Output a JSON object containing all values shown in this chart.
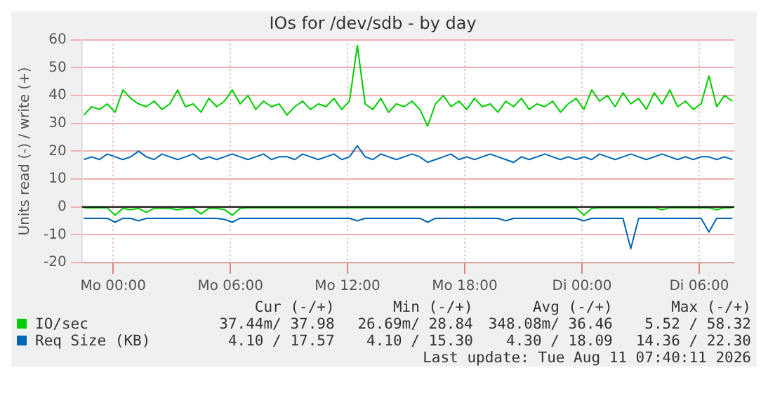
{
  "chart_data": {
    "type": "line",
    "title": "IOs for /dev/sdb - by day",
    "ylabel": "Units read (-) / write (+)",
    "x": [
      "2026-08-09T22:30",
      "2026-08-09T22:54",
      "2026-08-09T23:18",
      "2026-08-09T23:42",
      "2026-08-10T00:06",
      "2026-08-10T00:30",
      "2026-08-10T00:54",
      "2026-08-10T01:18",
      "2026-08-10T01:42",
      "2026-08-10T02:06",
      "2026-08-10T02:30",
      "2026-08-10T02:54",
      "2026-08-10T03:18",
      "2026-08-10T03:42",
      "2026-08-10T04:06",
      "2026-08-10T04:30",
      "2026-08-10T04:54",
      "2026-08-10T05:18",
      "2026-08-10T05:42",
      "2026-08-10T06:06",
      "2026-08-10T06:30",
      "2026-08-10T06:54",
      "2026-08-10T07:18",
      "2026-08-10T07:42",
      "2026-08-10T08:06",
      "2026-08-10T08:30",
      "2026-08-10T08:54",
      "2026-08-10T09:18",
      "2026-08-10T09:42",
      "2026-08-10T10:06",
      "2026-08-10T10:30",
      "2026-08-10T10:54",
      "2026-08-10T11:18",
      "2026-08-10T11:42",
      "2026-08-10T12:06",
      "2026-08-10T12:30",
      "2026-08-10T12:54",
      "2026-08-10T13:18",
      "2026-08-10T13:42",
      "2026-08-10T14:06",
      "2026-08-10T14:30",
      "2026-08-10T14:54",
      "2026-08-10T15:18",
      "2026-08-10T15:42",
      "2026-08-10T16:06",
      "2026-08-10T16:30",
      "2026-08-10T16:54",
      "2026-08-10T17:18",
      "2026-08-10T17:42",
      "2026-08-10T18:06",
      "2026-08-10T18:30",
      "2026-08-10T18:54",
      "2026-08-10T19:18",
      "2026-08-10T19:42",
      "2026-08-10T20:06",
      "2026-08-10T20:30",
      "2026-08-10T20:54",
      "2026-08-10T21:18",
      "2026-08-10T21:42",
      "2026-08-10T22:06",
      "2026-08-10T22:30",
      "2026-08-10T22:54",
      "2026-08-10T23:18",
      "2026-08-10T23:42",
      "2026-08-11T00:06",
      "2026-08-11T00:30",
      "2026-08-11T00:54",
      "2026-08-11T01:18",
      "2026-08-11T01:42",
      "2026-08-11T02:06",
      "2026-08-11T02:30",
      "2026-08-11T02:54",
      "2026-08-11T03:18",
      "2026-08-11T03:42",
      "2026-08-11T04:06",
      "2026-08-11T04:30",
      "2026-08-11T04:54",
      "2026-08-11T05:18",
      "2026-08-11T05:42",
      "2026-08-11T06:06",
      "2026-08-11T06:30",
      "2026-08-11T06:54",
      "2026-08-11T07:18",
      "2026-08-11T07:42"
    ],
    "series": [
      {
        "name": "IO/sec",
        "color": "#00cc00",
        "values": [
          33,
          36,
          35,
          37,
          34,
          42,
          39,
          37,
          36,
          38,
          35,
          37,
          42,
          36,
          37,
          34,
          39,
          36,
          38,
          42,
          37,
          40,
          35,
          38,
          36,
          37,
          33,
          36,
          38,
          35,
          37,
          36,
          39,
          35,
          38,
          58,
          37,
          35,
          39,
          34,
          37,
          36,
          38,
          35,
          29,
          37,
          40,
          36,
          38,
          35,
          39,
          36,
          37,
          34,
          38,
          36,
          39,
          35,
          37,
          36,
          38,
          34,
          37,
          39,
          35,
          42,
          38,
          40,
          36,
          41,
          37,
          39,
          35,
          41,
          37,
          42,
          36,
          38,
          35,
          37,
          47,
          36,
          40,
          38
        ]
      },
      {
        "name": "Req Size (KB)",
        "color": "#0066b3",
        "values": [
          17,
          18,
          17,
          19,
          18,
          17,
          18,
          20,
          18,
          17,
          19,
          18,
          17,
          18,
          19,
          17,
          18,
          17,
          18,
          19,
          18,
          17,
          18,
          19,
          17,
          18,
          18,
          17,
          19,
          18,
          17,
          18,
          19,
          17,
          18,
          22,
          18,
          17,
          19,
          18,
          17,
          18,
          19,
          18,
          16,
          17,
          18,
          19,
          17,
          18,
          17,
          18,
          19,
          18,
          17,
          16,
          18,
          17,
          18,
          19,
          18,
          17,
          18,
          17,
          18,
          17,
          19,
          18,
          17,
          18,
          19,
          18,
          17,
          18,
          19,
          18,
          17,
          18,
          17,
          18,
          18,
          17,
          18,
          17
        ]
      },
      {
        "color": "#00cc00",
        "values": [
          -0.3,
          -0.3,
          -0.3,
          -0.3,
          -3,
          -0.5,
          -1,
          -0.5,
          -2,
          -0.5,
          -0.5,
          -0.5,
          -1,
          -0.5,
          -0.5,
          -2.5,
          -0.5,
          -0.5,
          -1,
          -3,
          -0.5,
          -0.3,
          -0.3,
          -0.3,
          -0.3,
          -0.3,
          -0.3,
          -0.3,
          -0.3,
          -0.3,
          -0.3,
          -0.3,
          -0.3,
          -0.3,
          -0.3,
          -0.3,
          -0.3,
          -0.3,
          -0.3,
          -0.3,
          -0.3,
          -0.3,
          -0.3,
          -0.3,
          -0.3,
          -0.3,
          -0.3,
          -0.3,
          -0.3,
          -0.3,
          -0.3,
          -0.3,
          -0.3,
          -0.3,
          -0.3,
          -0.3,
          -0.3,
          -0.3,
          -0.3,
          -0.3,
          -0.3,
          -0.3,
          -0.3,
          -0.3,
          -3,
          -0.5,
          -0.3,
          -0.3,
          -0.3,
          -0.3,
          -0.3,
          -0.3,
          -0.3,
          -0.3,
          -1,
          -0.3,
          -0.3,
          -0.3,
          -0.3,
          -0.3,
          -0.3,
          -1,
          -0.3,
          -0.3
        ]
      },
      {
        "color": "#0066b3",
        "values": [
          -4.1,
          -4.1,
          -4.1,
          -4.1,
          -5.5,
          -4.1,
          -4.1,
          -5,
          -4.1,
          -4.1,
          -4.1,
          -4.1,
          -4.1,
          -4.1,
          -4.1,
          -4.1,
          -4.1,
          -4.1,
          -4.5,
          -5.5,
          -4.1,
          -4.1,
          -4.1,
          -4.1,
          -4.1,
          -4.1,
          -4.1,
          -4.1,
          -4.1,
          -4.1,
          -4.1,
          -4.1,
          -4.1,
          -4.1,
          -4.1,
          -5,
          -4.1,
          -4.1,
          -4.1,
          -4.1,
          -4.1,
          -4.1,
          -4.1,
          -4.1,
          -5.5,
          -4.1,
          -4.1,
          -4.1,
          -4.1,
          -4.1,
          -4.1,
          -4.1,
          -4.1,
          -4.1,
          -5,
          -4.1,
          -4.1,
          -4.1,
          -4.1,
          -4.1,
          -4.1,
          -4.1,
          -4.1,
          -4.1,
          -5,
          -4.1,
          -4.1,
          -4.1,
          -4.1,
          -4.1,
          -15,
          -4.1,
          -4.1,
          -4.1,
          -4.1,
          -4.1,
          -4.1,
          -4.1,
          -4.1,
          -4.1,
          -9,
          -4.1,
          -4.1,
          -4.1
        ]
      }
    ],
    "xlim": [
      "2026-08-09T22:24",
      "2026-08-11T07:48"
    ],
    "xticks": [
      {
        "value": "2026-08-10T00:00",
        "label": "Mo 00:00"
      },
      {
        "value": "2026-08-10T06:00",
        "label": "Mo 06:00"
      },
      {
        "value": "2026-08-10T12:00",
        "label": "Mo 12:00"
      },
      {
        "value": "2026-08-10T18:00",
        "label": "Mo 18:00"
      },
      {
        "value": "2026-08-11T00:00",
        "label": "Di 00:00"
      },
      {
        "value": "2026-08-11T06:00",
        "label": "Di 06:00"
      }
    ],
    "ylim": [
      -20,
      60
    ],
    "yticks": [
      -20,
      -10,
      0,
      10,
      20,
      30,
      40,
      50,
      60
    ],
    "ref_lines": [
      {
        "axis": "y",
        "value": 0,
        "color": "#000000"
      }
    ],
    "grid": true,
    "legend": "bottom",
    "marker": "none",
    "line_style": "solid",
    "annotations": [
      "Cur (-/+)",
      "Min (-/+)",
      "Avg (-/+)",
      "Max (-/+)",
      "37.44m/ 37.98",
      "26.69m/ 28.84",
      "348.08m/ 36.46",
      "5.52 / 58.32",
      "4.10 / 17.57",
      "4.10 / 15.30",
      "4.30 / 18.09",
      "14.36 / 22.30",
      "Last update: Tue Aug 11 07:40:11 2026"
    ]
  }
}
